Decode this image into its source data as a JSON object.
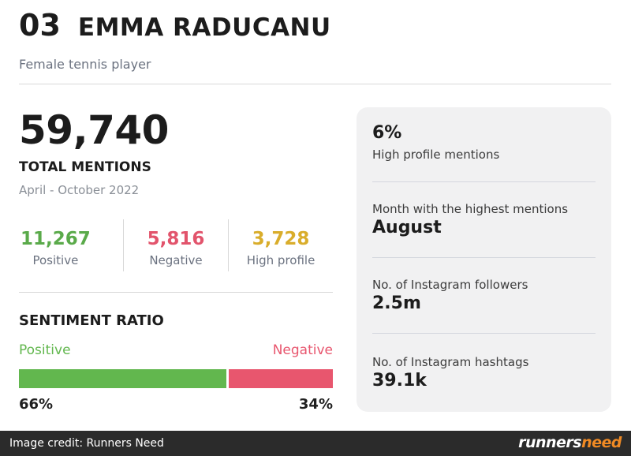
{
  "header": {
    "rank": "03",
    "name": "EMMA RADUCANU",
    "subtitle": "Female tennis player"
  },
  "summary": {
    "total_mentions": "59,740",
    "total_label": "TOTAL MENTIONS",
    "period": "April - October 2022"
  },
  "breakdown": [
    {
      "value": "11,267",
      "label": "Positive",
      "color": "#5aaa4a"
    },
    {
      "value": "5,816",
      "label": "Negative",
      "color": "#e2546c"
    },
    {
      "value": "3,728",
      "label": "High profile",
      "color": "#d9ad2b"
    }
  ],
  "sentiment": {
    "title": "SENTIMENT RATIO",
    "positive_label": "Positive",
    "negative_label": "Negative",
    "positive_pct": "66%",
    "negative_pct": "34%",
    "positive_fraction": 0.66,
    "positive_color": "#62b74e",
    "negative_color": "#e8566e"
  },
  "panel": {
    "high_profile_pct": "6%",
    "high_profile_label": "High profile mentions",
    "peak_month_label": "Month with the highest mentions",
    "peak_month": "August",
    "instagram_followers_label": "No. of Instagram followers",
    "instagram_followers": "2.5m",
    "instagram_hashtags_label": "No. of Instagram hashtags",
    "instagram_hashtags": "39.1k"
  },
  "footer": {
    "credit": "Image credit: Runners Need",
    "logo_part1": "runners",
    "logo_part2": "need"
  }
}
